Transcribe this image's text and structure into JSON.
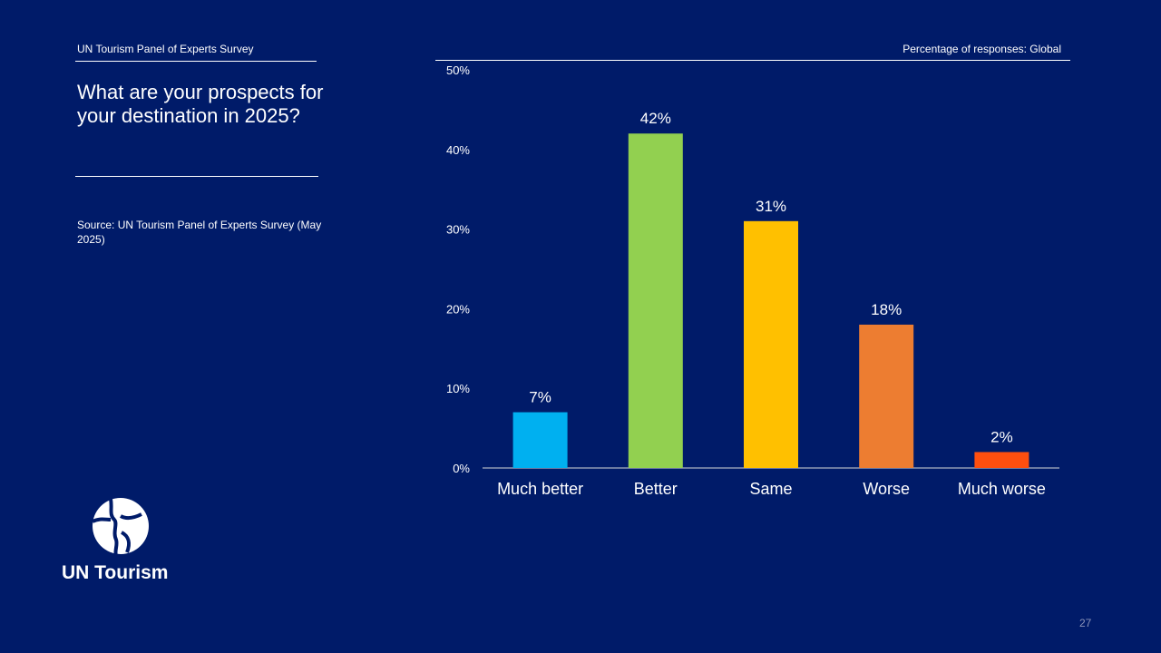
{
  "header": {
    "left": "UN Tourism Panel of Experts Survey",
    "right": "Percentage of responses: Global"
  },
  "title": "What are your prospects for your destination in 2025?",
  "source": "Source: UN Tourism Panel of Experts Survey (May 2025)",
  "logo": {
    "text": "UN Tourism"
  },
  "page_number": "27",
  "chart_data": {
    "type": "bar",
    "title": "",
    "xlabel": "",
    "ylabel": "",
    "categories": [
      "Much better",
      "Better",
      "Same",
      "Worse",
      "Much worse"
    ],
    "values": [
      7,
      42,
      31,
      18,
      2
    ],
    "data_labels": [
      "7%",
      "42%",
      "31%",
      "18%",
      "2%"
    ],
    "colors": [
      "#00b0f0",
      "#92d050",
      "#ffc000",
      "#ed7d31",
      "#ff4f0f"
    ],
    "ylim": [
      0,
      50
    ],
    "yticks": [
      0,
      10,
      20,
      30,
      40,
      50
    ],
    "ytick_labels": [
      "0%",
      "10%",
      "20%",
      "30%",
      "40%",
      "50%"
    ],
    "grid": false,
    "legend": "none"
  }
}
